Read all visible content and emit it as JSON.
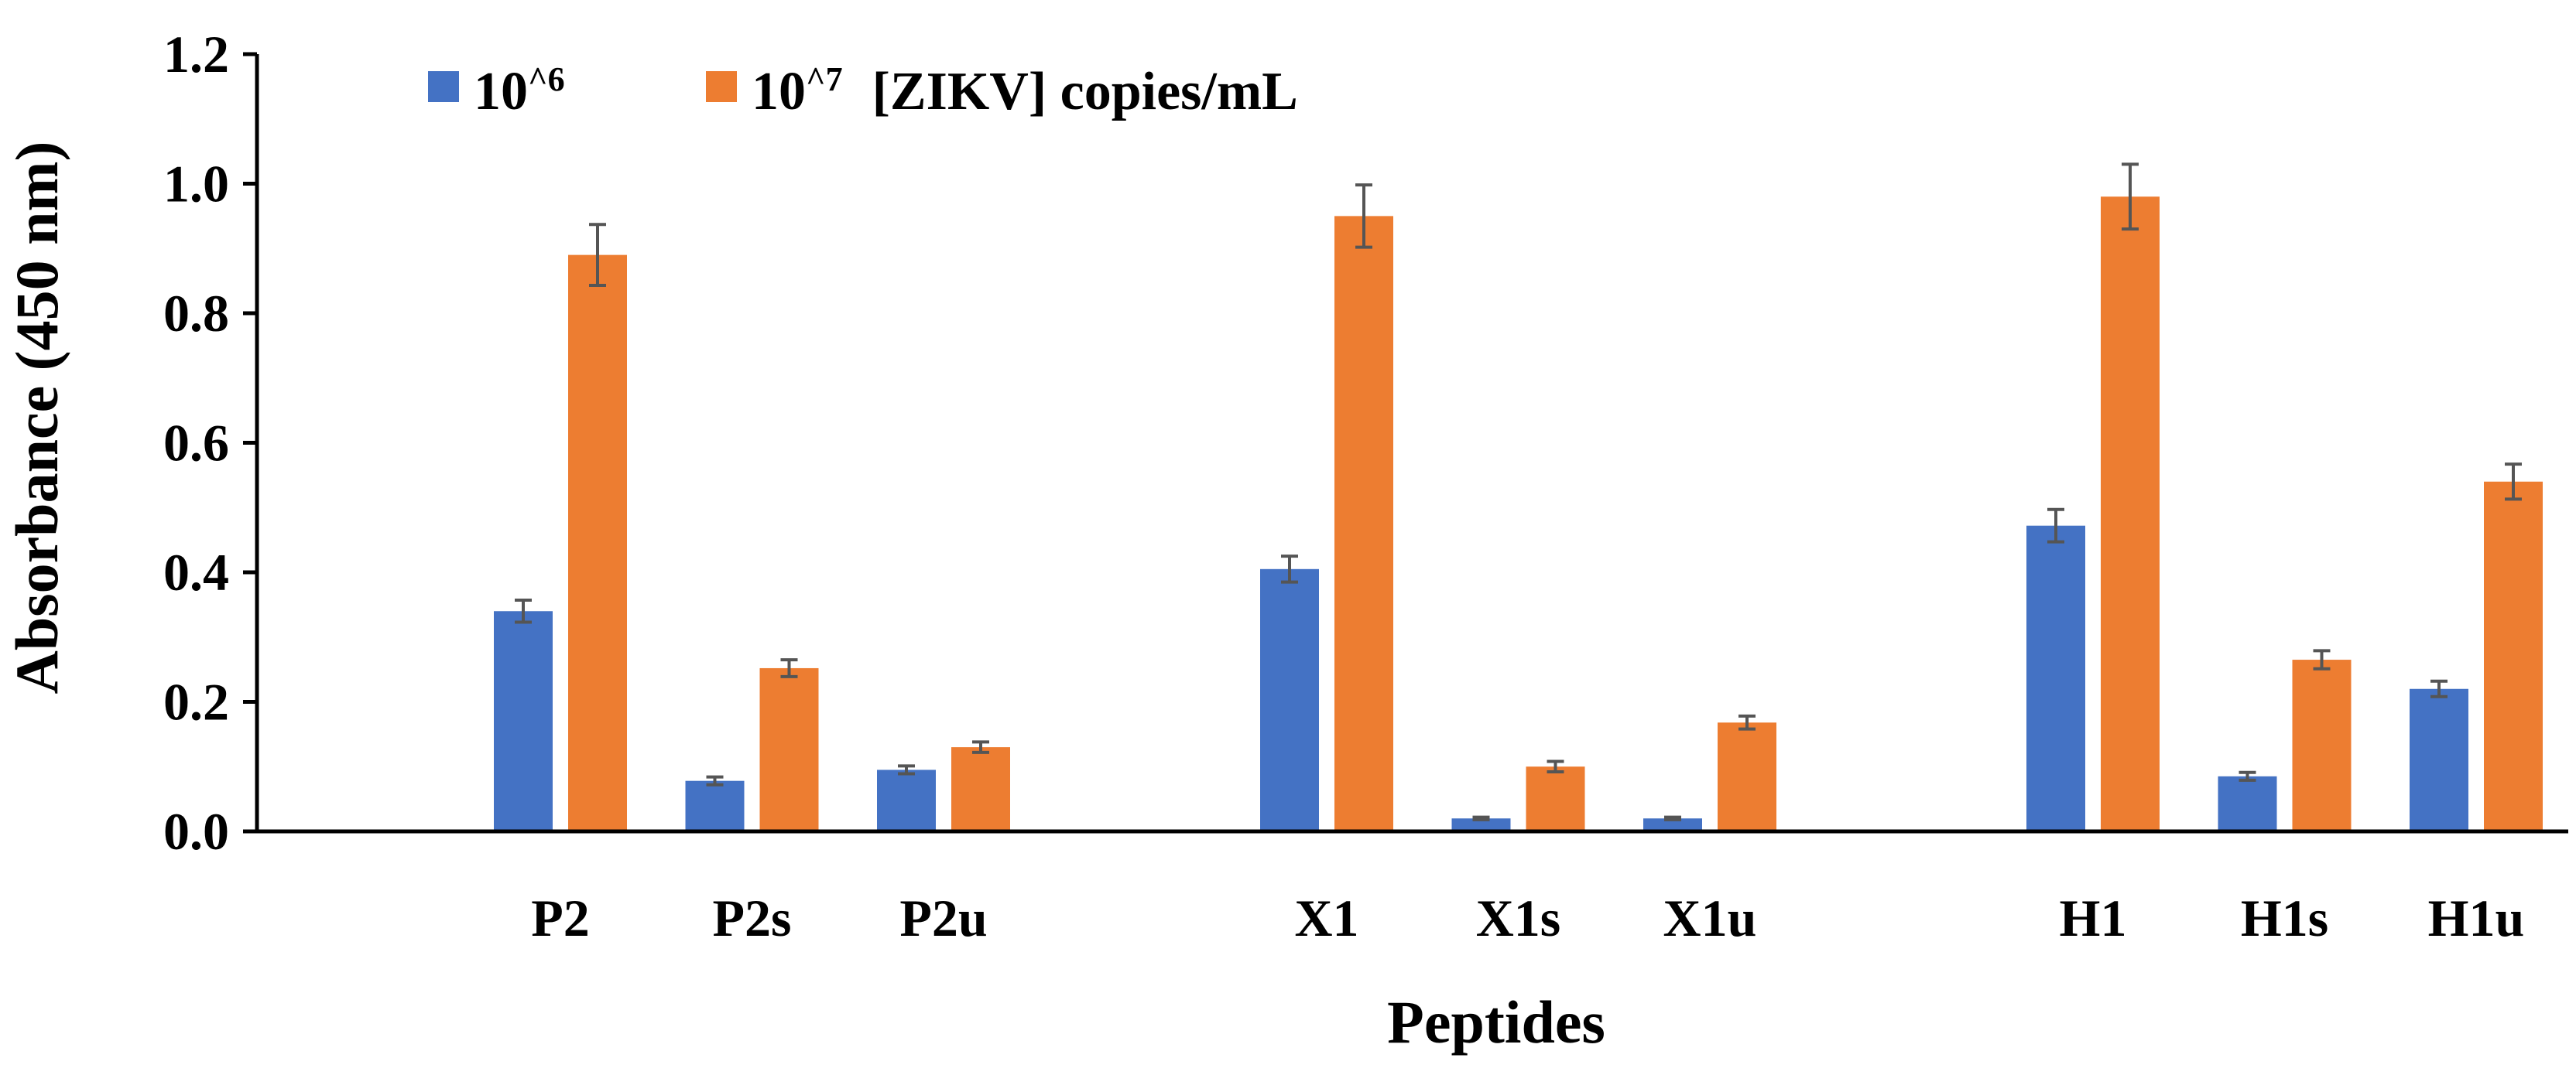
{
  "chart_data": {
    "type": "bar",
    "title": "",
    "xlabel": "Peptides",
    "ylabel": "Absorbance (450 nm)",
    "ylim": [
      0,
      1.2
    ],
    "yticks": [
      "0.0",
      "0.2",
      "0.4",
      "0.6",
      "0.8",
      "1.0",
      "1.2"
    ],
    "grid": false,
    "legend_position": "top-left",
    "legend_suffix": "[ZIKV] copies/mL",
    "groups": [
      [
        "P2",
        "P2s",
        "P2u"
      ],
      [
        "X1",
        "X1s",
        "X1u"
      ],
      [
        "H1",
        "H1s",
        "H1u"
      ]
    ],
    "categories": [
      "P2",
      "P2s",
      "P2u",
      "X1",
      "X1s",
      "X1u",
      "H1",
      "H1s",
      "H1u"
    ],
    "series": [
      {
        "name": "10^6",
        "legend_base": "10",
        "legend_exp": "^6",
        "color": "#4472C4",
        "values": [
          0.34,
          0.078,
          0.095,
          0.405,
          0.02,
          0.02,
          0.472,
          0.085,
          0.22
        ],
        "errors": [
          0.017,
          0.006,
          0.006,
          0.02,
          0.002,
          0.002,
          0.025,
          0.006,
          0.012
        ]
      },
      {
        "name": "10^7",
        "legend_base": "10",
        "legend_exp": "^7",
        "color": "#ED7D31",
        "values": [
          0.89,
          0.252,
          0.13,
          0.95,
          0.1,
          0.168,
          0.98,
          0.265,
          0.54
        ],
        "errors": [
          0.047,
          0.013,
          0.008,
          0.048,
          0.008,
          0.01,
          0.05,
          0.014,
          0.027
        ]
      }
    ],
    "error_bar_color": "#555555"
  }
}
